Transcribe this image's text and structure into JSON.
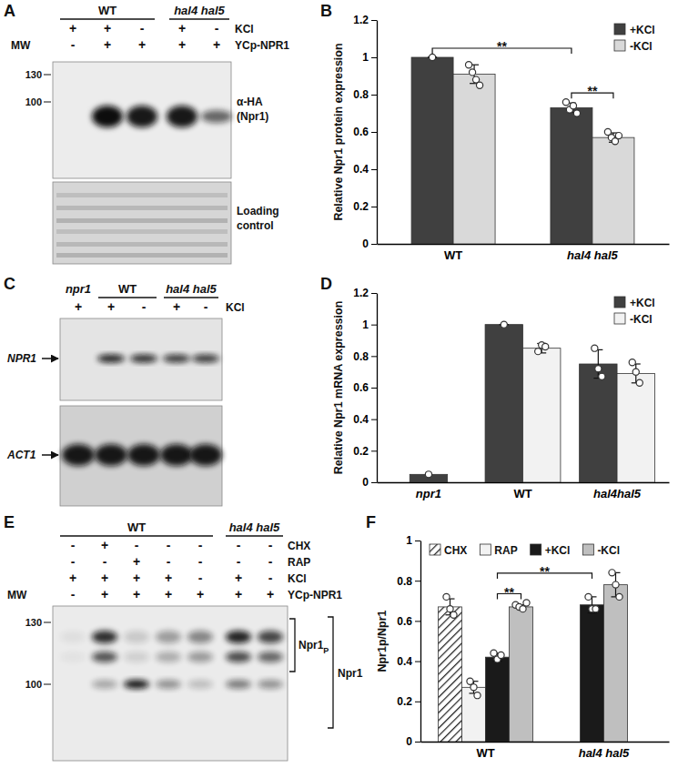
{
  "panel_labels": [
    "A",
    "B",
    "C",
    "D",
    "E",
    "F"
  ],
  "blots": [
    {
      "groups": [
        {
          "text": "WT",
          "span": 3
        },
        {
          "text": "hal4 hal5",
          "span": 2
        }
      ],
      "rows": [
        {
          "label": "KCl",
          "values": [
            "+",
            "+",
            "-",
            "+",
            "-"
          ]
        },
        {
          "label": "YCp-NPR1",
          "values": [
            "-",
            "+",
            "+",
            "+",
            "+"
          ]
        }
      ],
      "mw_label": "MW",
      "mw": [
        130,
        100
      ],
      "blot_labels": [
        [
          "α-HA",
          "(Npr1)"
        ],
        [
          "Loading",
          "control"
        ]
      ]
    },
    {
      "groups": [
        {
          "text": "npr1",
          "span": 1
        },
        {
          "text": "WT",
          "span": 2
        },
        {
          "text": "hal4 hal5",
          "span": 2
        }
      ],
      "rows": [
        {
          "label": "KCl",
          "values": [
            "+",
            "+",
            "-",
            "+",
            "-"
          ]
        }
      ],
      "blot_labels": [
        [
          "NPR1"
        ],
        [
          "ACT1"
        ]
      ]
    },
    {
      "groups": [
        {
          "text": "WT",
          "span": 5
        },
        {
          "text": "hal4 hal5",
          "span": 2
        }
      ],
      "rows": [
        {
          "label": "CHX",
          "values": [
            "-",
            "+",
            "-",
            "-",
            "-",
            "-",
            "-"
          ]
        },
        {
          "label": "RAP",
          "values": [
            "-",
            "-",
            "+",
            "-",
            "-",
            "-",
            "-"
          ]
        },
        {
          "label": "KCl",
          "values": [
            "+",
            "+",
            "+",
            "+",
            "-",
            "+",
            "-"
          ]
        },
        {
          "label": "YCp-NPR1",
          "values": [
            "-",
            "+",
            "+",
            "+",
            "+",
            "+",
            "+"
          ]
        }
      ],
      "mw_label": "MW",
      "mw": [
        130,
        100
      ],
      "blot_labels": [
        [
          "Npr1",
          "P"
        ],
        [
          "Npr1"
        ]
      ]
    }
  ],
  "chart_data": [
    {
      "type": "bar",
      "ylabel": "Relative Npr1 protein expression",
      "categories": [
        "WT",
        "hal4 hal5"
      ],
      "series": [
        {
          "name": "+KCl",
          "color": "#404040",
          "values": [
            1.0,
            0.73
          ],
          "errors": [
            0,
            0.025
          ],
          "points": [
            [
              1.0
            ],
            [
              0.76,
              0.72,
              0.74,
              0.7
            ]
          ]
        },
        {
          "name": "-KCl",
          "color": "#d9d9d9",
          "values": [
            0.91,
            0.57
          ],
          "errors": [
            0.05,
            0.025
          ],
          "points": [
            [
              0.96,
              0.92,
              0.88,
              0.85
            ],
            [
              0.6,
              0.57,
              0.55,
              0.58
            ]
          ]
        }
      ],
      "ylim": [
        0,
        1.2
      ],
      "yticks": [
        0,
        0.2,
        0.4,
        0.6,
        0.8,
        1,
        1.2
      ],
      "legend": "upper right",
      "annotations": [
        "**",
        "**"
      ]
    },
    {
      "type": "bar",
      "ylabel": "Relative Npr1 mRNA expression",
      "categories": [
        "npr1",
        "WT",
        "hal4hal5"
      ],
      "series": [
        {
          "name": "+KCl",
          "color": "#404040",
          "values": [
            0.05,
            1.0,
            0.75
          ],
          "errors": [
            null,
            0,
            0.09
          ],
          "points": [
            [
              0.05
            ],
            [
              1.0
            ],
            [
              0.85,
              0.72,
              0.67
            ]
          ]
        },
        {
          "name": "-KCl",
          "color": "#f2f2f2",
          "values": [
            null,
            0.85,
            0.69
          ],
          "errors": [
            null,
            0.03,
            0.06
          ],
          "points": [
            null,
            [
              0.83,
              0.87,
              0.86
            ],
            [
              0.76,
              0.7,
              0.63
            ]
          ]
        }
      ],
      "ylim": [
        0,
        1.2
      ],
      "yticks": [
        0,
        0.2,
        0.4,
        0.6,
        0.8,
        1,
        1.2
      ],
      "legend": "upper right"
    },
    {
      "type": "bar",
      "ylabel": "Npr1p/Npr1",
      "categories": [
        "WT",
        "hal4 hal5"
      ],
      "series": [
        {
          "name": "CHX",
          "color": "#ffffff",
          "values": [
            0.67,
            null
          ],
          "errors": [
            0.04,
            null
          ],
          "points": [
            [
              0.72,
              0.66,
              0.63
            ],
            null
          ]
        },
        {
          "name": "RAP",
          "color": "#f2f2f2",
          "values": [
            0.27,
            null
          ],
          "errors": [
            0.03,
            null
          ],
          "points": [
            [
              0.3,
              0.27,
              0.23
            ],
            null
          ]
        },
        {
          "name": "+KCl",
          "color": "#1a1a1a",
          "values": [
            0.42,
            0.68
          ],
          "errors": [
            0.02,
            0.04
          ],
          "points": [
            [
              0.44,
              0.41,
              0.43
            ],
            [
              0.72,
              0.66,
              0.66
            ]
          ]
        },
        {
          "name": "-KCl",
          "color": "#bfbfbf",
          "values": [
            0.67,
            0.78
          ],
          "errors": [
            0.01,
            0.06
          ],
          "points": [
            [
              0.68,
              0.67,
              0.66,
              0.69
            ],
            [
              0.84,
              0.78,
              0.72
            ]
          ]
        }
      ],
      "ylim": [
        0,
        1
      ],
      "yticks": [
        0,
        0.2,
        0.4,
        0.6,
        0.8,
        1
      ],
      "legend": "top",
      "annotations": [
        "**",
        "**"
      ]
    }
  ]
}
